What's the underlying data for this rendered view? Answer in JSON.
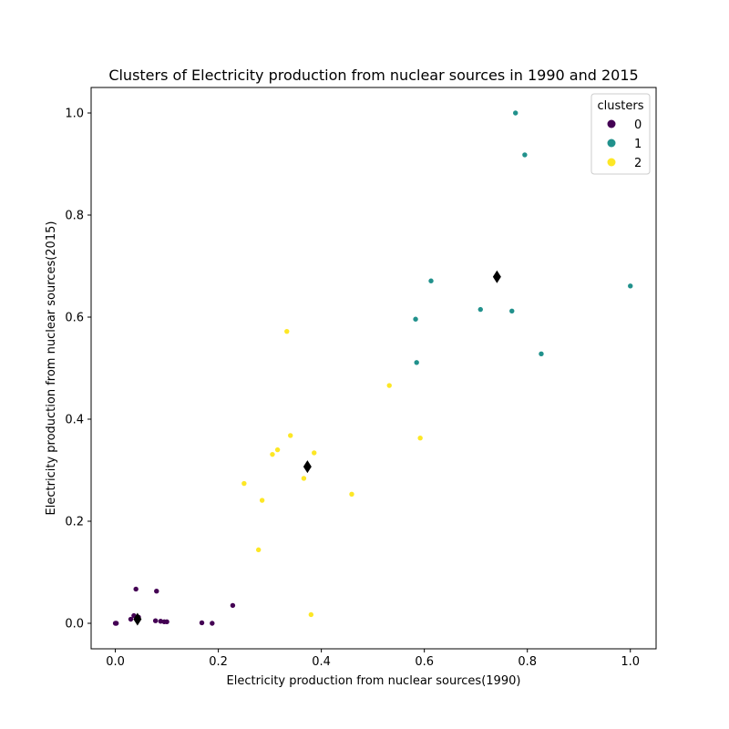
{
  "chart_data": {
    "type": "scatter",
    "title": "Clusters of Electricity production from nuclear sources in 1990 and 2015",
    "xlabel": "Electricity production from nuclear sources(1990)",
    "ylabel": "Electricity production from nuclear sources(2015)",
    "xlim": [
      -0.047,
      1.05
    ],
    "ylim": [
      -0.05,
      1.05
    ],
    "xticks": [
      0.0,
      0.2,
      0.4,
      0.6,
      0.8,
      1.0
    ],
    "xtick_labels": [
      "0.0",
      "0.2",
      "0.4",
      "0.6",
      "0.8",
      "1.0"
    ],
    "yticks": [
      0.0,
      0.2,
      0.4,
      0.6,
      0.8,
      1.0
    ],
    "ytick_labels": [
      "0.0",
      "0.2",
      "0.4",
      "0.6",
      "0.8",
      "1.0"
    ],
    "grid": false,
    "legend": {
      "title": "clusters",
      "placement": "top-right",
      "entries": [
        {
          "label": "0",
          "color": "#440154"
        },
        {
          "label": "1",
          "color": "#21918c"
        },
        {
          "label": "2",
          "color": "#fde725"
        }
      ]
    },
    "series": [
      {
        "name": "0",
        "color": "#440154",
        "points": [
          [
            0.0,
            0.0
          ],
          [
            0.002,
            0.0
          ],
          [
            0.03,
            0.008
          ],
          [
            0.036,
            0.015
          ],
          [
            0.04,
            0.067
          ],
          [
            0.042,
            0.01
          ],
          [
            0.045,
            0.012
          ],
          [
            0.078,
            0.005
          ],
          [
            0.08,
            0.063
          ],
          [
            0.088,
            0.004
          ],
          [
            0.095,
            0.003
          ],
          [
            0.1,
            0.003
          ],
          [
            0.168,
            0.001
          ],
          [
            0.188,
            0.0
          ],
          [
            0.228,
            0.035
          ]
        ]
      },
      {
        "name": "1",
        "color": "#21918c",
        "points": [
          [
            0.583,
            0.596
          ],
          [
            0.585,
            0.511
          ],
          [
            0.613,
            0.671
          ],
          [
            0.709,
            0.615
          ],
          [
            0.77,
            0.612
          ],
          [
            0.777,
            1.0
          ],
          [
            0.795,
            0.918
          ],
          [
            0.827,
            0.528
          ],
          [
            1.0,
            0.661
          ]
        ]
      },
      {
        "name": "2",
        "color": "#fde725",
        "points": [
          [
            0.25,
            0.274
          ],
          [
            0.278,
            0.144
          ],
          [
            0.285,
            0.241
          ],
          [
            0.305,
            0.331
          ],
          [
            0.315,
            0.34
          ],
          [
            0.333,
            0.572
          ],
          [
            0.34,
            0.368
          ],
          [
            0.366,
            0.284
          ],
          [
            0.38,
            0.017
          ],
          [
            0.386,
            0.334
          ],
          [
            0.459,
            0.253
          ],
          [
            0.532,
            0.466
          ],
          [
            0.592,
            0.363
          ]
        ]
      }
    ],
    "centroids": {
      "marker": "diamond",
      "color": "#000000",
      "points": [
        [
          0.043,
          0.008
        ],
        [
          0.741,
          0.679
        ],
        [
          0.373,
          0.307
        ]
      ]
    }
  }
}
